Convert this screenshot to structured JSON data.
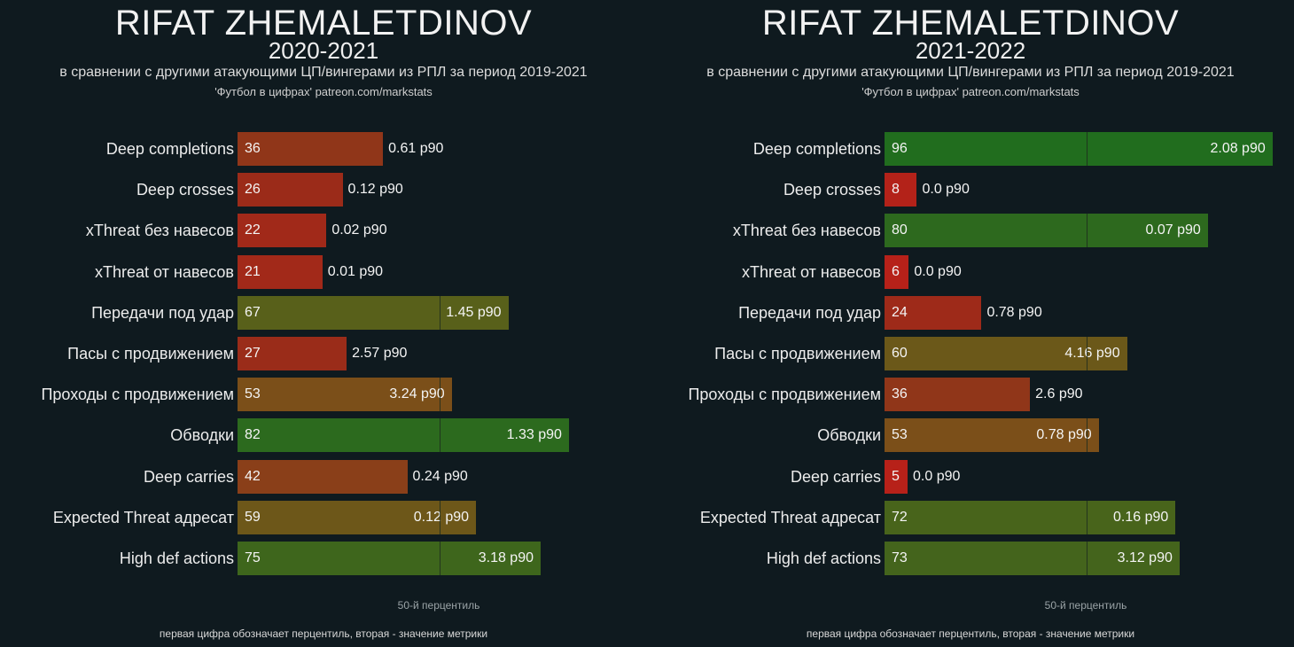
{
  "panels": [
    {
      "title": "RIFAT ZHEMALETDINOV",
      "season": "2020-2021",
      "subtitle": "в сравнении с другими атакующими ЦП/вингерами из РПЛ за период 2019-2021",
      "source": "'Футбол в цифрах' patreon.com/markstats",
      "axis_note": "50-й перцентиль",
      "footer_note": "первая цифра обозначает перцентиль, вторая - значение метрики"
    },
    {
      "title": "RIFAT ZHEMALETDINOV",
      "season": "2021-2022",
      "subtitle": "в сравнении с другими атакующими ЦП/вингерами из РПЛ за период 2019-2021",
      "source": "'Футбол в цифрах' patreon.com/markstats",
      "axis_note": "50-й перцентиль",
      "footer_note": "первая цифра обозначает перцентиль, вторая - значение метрики"
    }
  ],
  "chart_data": [
    {
      "type": "bar",
      "orientation": "horizontal",
      "title": "RIFAT ZHEMALETDINOV 2020-2021",
      "xlim": [
        0,
        100
      ],
      "reference_line": 50,
      "categories": [
        "Deep completions",
        "Deep crosses",
        "xThreat без навесов",
        "xThreat от навесов",
        "Передачи под удар",
        "Пасы с продвижением",
        "Проходы с продвижением",
        "Обводки",
        "Deep carries",
        "Expected Threat адресат",
        "High def actions"
      ],
      "percentiles": [
        36,
        26,
        22,
        21,
        67,
        27,
        53,
        82,
        42,
        59,
        75
      ],
      "metric_labels": [
        "0.61 p90",
        "0.12 p90",
        "0.02 p90",
        "0.01 p90",
        "1.45 p90",
        "2.57 p90",
        "3.24 p90",
        "1.33 p90",
        "0.24 p90",
        "0.12 p90",
        "3.18 p90"
      ]
    },
    {
      "type": "bar",
      "orientation": "horizontal",
      "title": "RIFAT ZHEMALETDINOV 2021-2022",
      "xlim": [
        0,
        100
      ],
      "reference_line": 50,
      "categories": [
        "Deep completions",
        "Deep crosses",
        "xThreat без навесов",
        "xThreat от навесов",
        "Передачи под удар",
        "Пасы с продвижением",
        "Проходы с продвижением",
        "Обводки",
        "Deep carries",
        "Expected Threat адресат",
        "High def actions"
      ],
      "percentiles": [
        96,
        8,
        80,
        6,
        24,
        60,
        36,
        53,
        5,
        72,
        73
      ],
      "metric_labels": [
        "2.08 p90",
        "0.0 p90",
        "0.07 p90",
        "0.0 p90",
        "0.78 p90",
        "4.16 p90",
        "2.6 p90",
        "0.78 p90",
        "0.0 p90",
        "0.16 p90",
        "3.12 p90"
      ]
    }
  ]
}
